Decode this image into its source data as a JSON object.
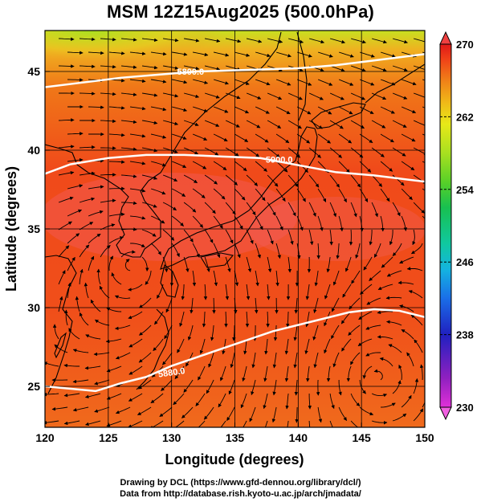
{
  "title": "MSM 12Z15Aug2025 (500.0hPa)",
  "credits": {
    "line1": "Drawing by DCL (https://www.gfd-dennou.org/library/dcl/)",
    "line2": "Data from http://database.rish.kyoto-u.ac.jp/arch/jmadata/"
  },
  "chart_data": {
    "type": "heatmap",
    "title": "MSM 12Z15Aug2025 (500.0hPa)",
    "xlabel": "Longitude (degrees)",
    "ylabel": "Latitude  (degrees)",
    "xlim": [
      120,
      150
    ],
    "ylim": [
      22.4,
      47.6
    ],
    "xticks": [
      120,
      125,
      130,
      135,
      140,
      145,
      150
    ],
    "yticks": [
      25,
      30,
      35,
      40,
      45
    ],
    "grid": true,
    "colorbar": {
      "ticks": [
        270,
        262,
        254,
        246,
        238,
        230
      ],
      "range": [
        230,
        270
      ],
      "colors": [
        "#e030d8",
        "#9020c0",
        "#2020c0",
        "#1a6ee8",
        "#14b4e0",
        "#10c8a0",
        "#18c050",
        "#58d028",
        "#a8e020",
        "#e8e818",
        "#f0b818",
        "#f08018",
        "#f04018",
        "#e01818"
      ]
    },
    "contours": [
      {
        "label": "5880.0",
        "lat_at_lon": [
          [
            120,
            25.0
          ],
          [
            124,
            24.7
          ],
          [
            126,
            25.2
          ],
          [
            128,
            25.6
          ],
          [
            130,
            26.3
          ],
          [
            134,
            27.4
          ],
          [
            138,
            28.5
          ],
          [
            142,
            29.3
          ],
          [
            144,
            29.7
          ],
          [
            146,
            29.9
          ],
          [
            148,
            29.8
          ],
          [
            150,
            29.4
          ]
        ]
      },
      {
        "label": "5900.0",
        "lat_at_lon": [
          [
            120,
            38.5
          ],
          [
            122,
            39.1
          ],
          [
            125,
            39.5
          ],
          [
            128,
            39.7
          ],
          [
            131,
            39.7
          ],
          [
            134,
            39.6
          ],
          [
            137,
            39.5
          ],
          [
            139,
            39.2
          ],
          [
            141,
            38.9
          ],
          [
            143,
            38.6
          ],
          [
            146,
            38.4
          ],
          [
            150,
            38.0
          ]
        ]
      },
      {
        "label": "5800.0",
        "lat_at_lon": [
          [
            120,
            44.0
          ],
          [
            123,
            44.3
          ],
          [
            126,
            44.6
          ],
          [
            129,
            44.8
          ],
          [
            132,
            45.0
          ],
          [
            136,
            45.1
          ],
          [
            140,
            45.2
          ],
          [
            143,
            45.4
          ],
          [
            146,
            45.7
          ],
          [
            150,
            46.1
          ]
        ]
      }
    ]
  }
}
